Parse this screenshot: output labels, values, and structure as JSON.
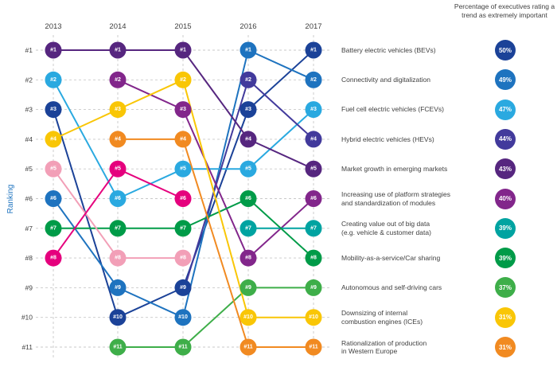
{
  "header": {
    "percentage_note": "Percentage of executives rating a trend as extremely important"
  },
  "ranking_axis": {
    "label": "Ranking",
    "ranks": [
      "#1",
      "#2",
      "#3",
      "#4",
      "#5",
      "#6",
      "#7",
      "#8",
      "#9",
      "#10",
      "#11"
    ]
  },
  "years": [
    "2013",
    "2014",
    "2015",
    "2016",
    "2017"
  ],
  "chart_data": {
    "type": "line",
    "subtype": "bump-ranking-chart",
    "x": [
      "2013",
      "2014",
      "2015",
      "2016",
      "2017"
    ],
    "ylabel": "Ranking",
    "ylim": [
      1,
      11
    ],
    "grid": "dashed-gray",
    "series": [
      {
        "id": "bevs",
        "label": "Battery electric vehicles (BEVs)",
        "label_lines": [
          "Battery electric vehicles (BEVs)"
        ],
        "percentage": "50%",
        "color": "#1b4298",
        "ranks": {
          "2013": 3,
          "2014": 10,
          "2015": 9,
          "2016": 3,
          "2017": 1
        }
      },
      {
        "id": "connectivity",
        "label": "Connectivity and digitalization",
        "label_lines": [
          "Connectivity and digitalization"
        ],
        "percentage": "49%",
        "color": "#1e73bf",
        "ranks": {
          "2013": 6,
          "2014": 9,
          "2015": 10,
          "2016": 1,
          "2017": 2
        }
      },
      {
        "id": "fcevs",
        "label": "Fuel cell electric vehicles (FCEVs)",
        "label_lines": [
          "Fuel cell electric vehicles (FCEVs)"
        ],
        "percentage": "47%",
        "color": "#2aa9e0",
        "ranks": {
          "2013": 2,
          "2014": 6,
          "2015": 5,
          "2016": 5,
          "2017": 3
        }
      },
      {
        "id": "hevs",
        "label": "Hybrid electric vehicles (HEVs)",
        "label_lines": [
          "Hybrid electric vehicles (HEVs)"
        ],
        "percentage": "44%",
        "color": "#423a9c",
        "ranks": {
          "2016": 2,
          "2017": 4
        },
        "entry_line_from_below": true
      },
      {
        "id": "emerging-markets",
        "label": "Market growth in emerging markets",
        "label_lines": [
          "Market growth in emerging markets"
        ],
        "percentage": "43%",
        "color": "#56267f",
        "ranks": {
          "2013": 1,
          "2014": 1,
          "2015": 1,
          "2016": 4,
          "2017": 5
        }
      },
      {
        "id": "platform-strategies",
        "label": "Increasing use of platform strategies and standardization of modules",
        "label_lines": [
          "Increasing use of platform strategies",
          "and standardization of modules"
        ],
        "percentage": "40%",
        "color": "#82268b",
        "ranks": {
          "2014": 2,
          "2015": 3,
          "2016": 8,
          "2017": 6
        }
      },
      {
        "id": "big-data",
        "label": "Creating value out of big data (e.g. vehicle & customer data)",
        "label_lines": [
          "Creating value out of big data",
          "(e.g. vehicle & customer data)"
        ],
        "percentage": "39%",
        "color": "#00a3a1",
        "ranks": {
          "2016": 7,
          "2017": 7
        }
      },
      {
        "id": "mobility-as-a-service",
        "label": "Mobility-as-a-service/Car sharing",
        "label_lines": [
          "Mobility-as-a-service/Car sharing"
        ],
        "percentage": "39%",
        "color": "#009b48",
        "ranks": {
          "2013": 7,
          "2014": 7,
          "2015": 7,
          "2016": 6,
          "2017": 8
        }
      },
      {
        "id": "autonomous",
        "label": "Autonomous and self-driving cars",
        "label_lines": [
          "Autonomous and self-driving cars"
        ],
        "percentage": "37%",
        "color": "#3eae49",
        "ranks": {
          "2014": 11,
          "2015": 11,
          "2016": 9,
          "2017": 9
        }
      },
      {
        "id": "downsizing-ices",
        "label": "Downsizing of internal combustion engines (ICEs)",
        "label_lines": [
          "Downsizing of internal",
          "combustion engines (ICEs)"
        ],
        "percentage": "31%",
        "color": "#f9c606",
        "ranks": {
          "2013": 4,
          "2014": 3,
          "2015": 2,
          "2016": 10,
          "2017": 10
        }
      },
      {
        "id": "rationalization",
        "label": "Rationalization of production in Western Europe",
        "label_lines": [
          "Rationalization of production",
          "in Western Europe"
        ],
        "percentage": "31%",
        "color": "#f18a21",
        "ranks": {
          "2014": 4,
          "2015": 4,
          "2016": 11,
          "2017": 11
        }
      },
      {
        "id": "unlabeled-pink-trend",
        "label": "",
        "label_lines": [],
        "percentage": "",
        "color": "#f29fb7",
        "ranks": {
          "2013": 5,
          "2014": 8,
          "2015": 8
        }
      },
      {
        "id": "unlabeled-magenta-trend",
        "label": "",
        "label_lines": [],
        "percentage": "",
        "color": "#e5007d",
        "ranks": {
          "2013": 8,
          "2014": 5,
          "2015": 6
        }
      }
    ]
  }
}
